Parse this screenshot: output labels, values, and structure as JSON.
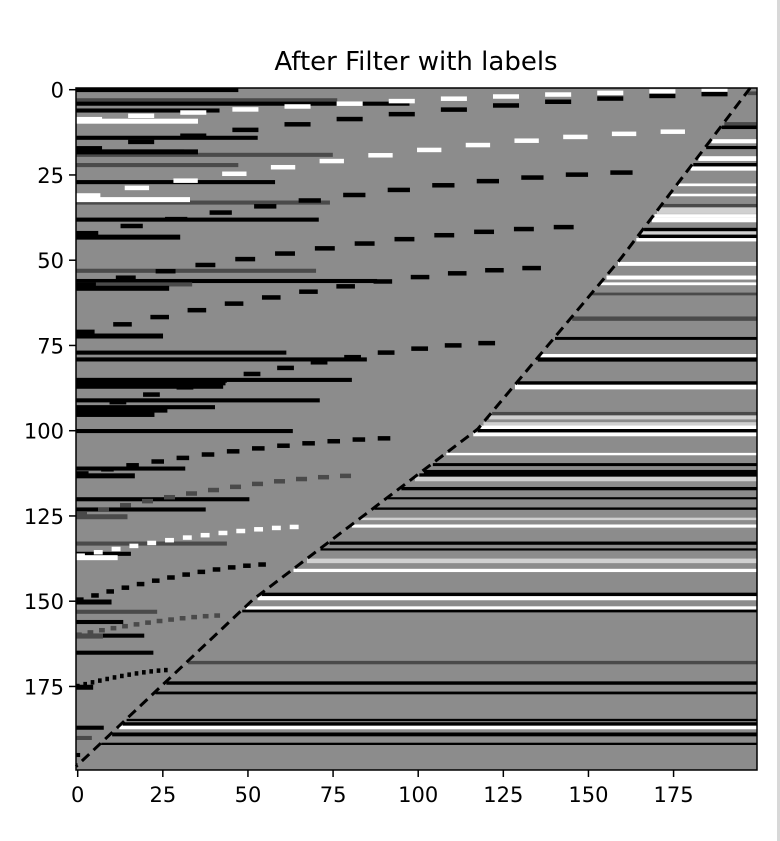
{
  "chart_data": {
    "type": "heatmap",
    "title": "After Filter with labels",
    "xlabel": "",
    "ylabel": "",
    "x_range": [
      0,
      199
    ],
    "y_range": [
      0,
      199
    ],
    "y_inverted": true,
    "x_ticks": [
      0,
      25,
      50,
      75,
      100,
      125,
      150,
      175
    ],
    "y_ticks": [
      0,
      25,
      50,
      75,
      100,
      125,
      150,
      175
    ],
    "colormap": "gray",
    "levels": [
      {
        "name": "black",
        "color": "#000000"
      },
      {
        "name": "dark-gray",
        "color": "#4a4a4a"
      },
      {
        "name": "gray",
        "color": "#8c8c8c"
      },
      {
        "name": "light-gray",
        "color": "#d0d0d0"
      },
      {
        "name": "white",
        "color": "#ffffff"
      }
    ],
    "background_level": "gray",
    "diagonal_boundary": [
      {
        "row": 0,
        "col": 198
      },
      {
        "row": 50,
        "col": 160
      },
      {
        "row": 100,
        "col": 118
      },
      {
        "row": 150,
        "col": 52
      },
      {
        "row": 199,
        "col": 0
      }
    ],
    "dashed_curves": [
      {
        "level": "white",
        "start": {
          "row": 9,
          "col": 0
        },
        "end": {
          "row": 0,
          "col": 199
        }
      },
      {
        "level": "black",
        "start": {
          "row": 18,
          "col": 0
        },
        "end": {
          "row": 1,
          "col": 199
        }
      },
      {
        "level": "white",
        "start": {
          "row": 32,
          "col": 0
        },
        "end": {
          "row": 12,
          "col": 186
        }
      },
      {
        "level": "black",
        "start": {
          "row": 43,
          "col": 0
        },
        "end": {
          "row": 24,
          "col": 170
        }
      },
      {
        "level": "black",
        "start": {
          "row": 58,
          "col": 0
        },
        "end": {
          "row": 40,
          "col": 152
        }
      },
      {
        "level": "black",
        "start": {
          "row": 72,
          "col": 0
        },
        "end": {
          "row": 52,
          "col": 142
        }
      },
      {
        "level": "black",
        "start": {
          "row": 95,
          "col": 0
        },
        "end": {
          "row": 74,
          "col": 128
        }
      },
      {
        "level": "black",
        "start": {
          "row": 113,
          "col": 0
        },
        "end": {
          "row": 102,
          "col": 96
        }
      },
      {
        "level": "dark-gray",
        "start": {
          "row": 125,
          "col": 0
        },
        "end": {
          "row": 113,
          "col": 84
        }
      },
      {
        "level": "white",
        "start": {
          "row": 137,
          "col": 0
        },
        "end": {
          "row": 128,
          "col": 68
        }
      },
      {
        "level": "black",
        "start": {
          "row": 150,
          "col": 0
        },
        "end": {
          "row": 139,
          "col": 58
        }
      },
      {
        "level": "dark-gray",
        "start": {
          "row": 160,
          "col": 0
        },
        "end": {
          "row": 154,
          "col": 44
        }
      },
      {
        "level": "black",
        "start": {
          "row": 175,
          "col": 0
        },
        "end": {
          "row": 170,
          "col": 28
        }
      }
    ]
  }
}
